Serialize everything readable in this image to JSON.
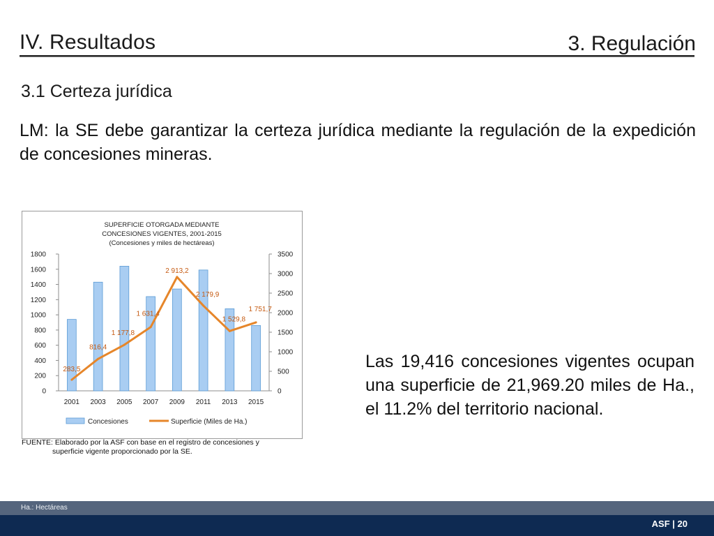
{
  "header": {
    "section_title": "IV. Resultados",
    "topic_title": "3. Regulación",
    "subsection": "3.1 Certeza jurídica"
  },
  "intro_text": "LM: la SE debe garantizar la certeza jurídica mediante la regulación de la expedición de concesiones mineras.",
  "chart_data": {
    "type": "bar",
    "title_lines": [
      "SUPERFICIE OTORGADA MEDIANTE",
      "CONCESIONES VIGENTES, 2001-2015",
      "(Concesiones y miles de hectáreas)"
    ],
    "categories": [
      "2001",
      "2003",
      "2005",
      "2007",
      "2009",
      "2011",
      "2013",
      "2015"
    ],
    "y_left": {
      "min": 0,
      "max": 1800,
      "ticks": [
        "0",
        "200",
        "400",
        "600",
        "800",
        "1000",
        "1200",
        "1400",
        "1600",
        "1800"
      ]
    },
    "y_right": {
      "min": 0,
      "max": 3500,
      "ticks": [
        "0",
        "500",
        "1000",
        "1500",
        "2000",
        "2500",
        "3000",
        "3500"
      ]
    },
    "grid": false,
    "legend_position": "bottom",
    "series": [
      {
        "name": "Concesiones",
        "kind": "bar",
        "axis": "left",
        "color": "#a9cdf2",
        "stroke": "#5b9bd5",
        "values": [
          940,
          1430,
          1640,
          1240,
          1340,
          1590,
          1080,
          860
        ]
      },
      {
        "name": "Superficie (Miles de Ha.)",
        "kind": "line",
        "axis": "right",
        "color": "#e6862a",
        "values": [
          283.5,
          816.4,
          1177.8,
          1631.4,
          2913.2,
          2179.9,
          1529.8,
          1751.7
        ],
        "labels": [
          "283,5",
          "816,4",
          "1 177,8",
          "1 631,4",
          "2 913,2",
          "2 179,9",
          "1 529,8",
          "1 751,7"
        ]
      }
    ]
  },
  "source": {
    "line1": "FUENTE: Elaborado por la ASF con base en el registro de concesiones y",
    "line2": "superficie vigente proporcionado por la SE."
  },
  "note_text": "Las 19,416 concesiones vigentes ocupan una superficie de 21,969.20 miles de Ha., el 11.2% del territorio nacional.",
  "footer": {
    "abbrev_note": "Ha.: Hectáreas",
    "page": "ASF | 20"
  }
}
